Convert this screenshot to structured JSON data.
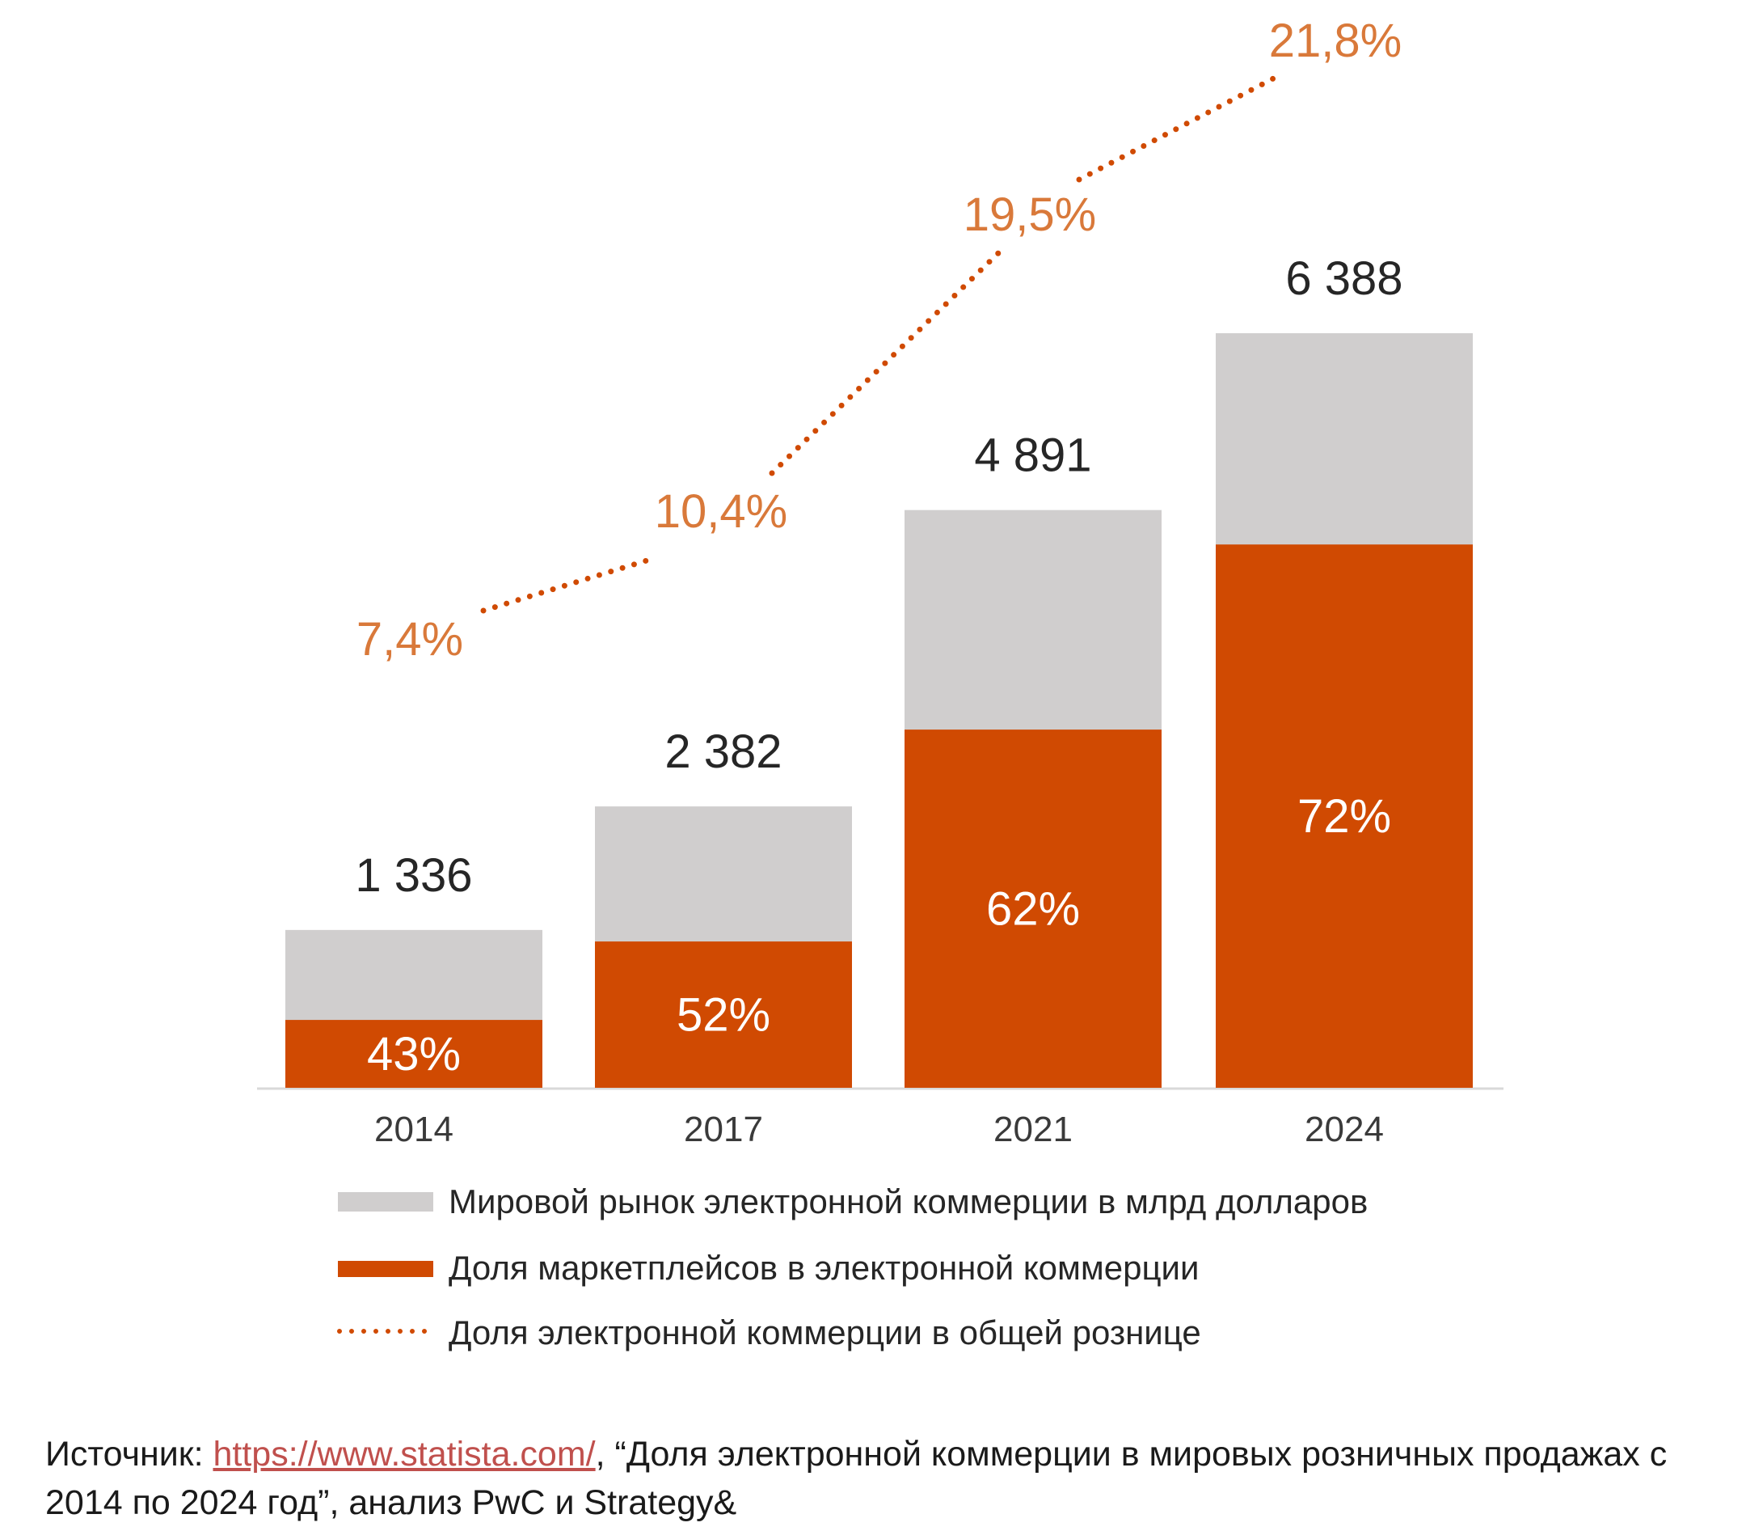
{
  "chart_data": {
    "type": "bar",
    "categories": [
      "2014",
      "2017",
      "2021",
      "2024"
    ],
    "series": [
      {
        "name": "Мировой рынок электронной коммерции в млрд долларов",
        "kind": "bar-total",
        "values": [
          1336,
          2382,
          4891,
          6388
        ],
        "value_labels": [
          "1 336",
          "2 382",
          "4 891",
          "6 388"
        ],
        "color": "#d0cece"
      },
      {
        "name": "Доля маркетплейсов в электронной коммерции",
        "kind": "bar-share",
        "values": [
          43,
          52,
          62,
          72
        ],
        "value_labels": [
          "43%",
          "52%",
          "62%",
          "72%"
        ],
        "unit": "%",
        "color": "#d04a02"
      },
      {
        "name": "Доля электронной коммерции в общей рознице",
        "kind": "dotted-line",
        "values": [
          7.4,
          10.4,
          19.5,
          21.8
        ],
        "value_labels": [
          "7,4%",
          "10,4%",
          "19,5%",
          "21,8%"
        ],
        "unit": "%",
        "color": "#d04a02",
        "label_color": "#d9793a"
      }
    ],
    "ylim": [
      0,
      6388
    ],
    "xlabel": "",
    "ylabel": "",
    "grid": false,
    "legend_position": "bottom"
  },
  "colors": {
    "axis": "#d9d9d9",
    "text": "#262626",
    "tick_text": "#3a3a3a"
  },
  "source": {
    "prefix": "Источник: ",
    "link_text": "https://www.statista.com/",
    "suffix": ", “Доля электронной коммерции в мировых розничных продажах с 2014 по 2024 год”, анализ PwC и Strategy&"
  }
}
